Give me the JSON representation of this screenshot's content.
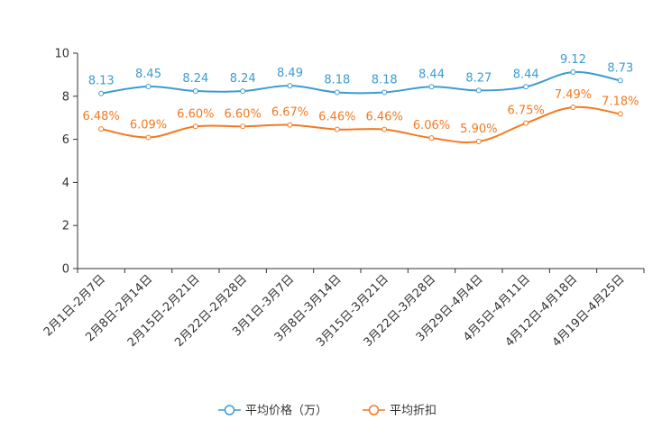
{
  "chart_data": {
    "type": "line",
    "categories": [
      "2月1日-2月7日",
      "2月8日-2月14日",
      "2月15日-2月21日",
      "2月22日-2月28日",
      "3月1日-3月7日",
      "3月8日-3月14日",
      "3月15日-3月21日",
      "3月22日-3月28日",
      "3月29日-4月4日",
      "4月5日-4月11日",
      "4月12日-4月18日",
      "4月19日-4月25日"
    ],
    "ylim": [
      0,
      10
    ],
    "yticks": [
      0,
      2,
      4,
      6,
      8,
      10
    ],
    "series": [
      {
        "name": "平均价格（万）",
        "color": "#3c9ccf",
        "values": [
          8.13,
          8.45,
          8.24,
          8.24,
          8.49,
          8.18,
          8.18,
          8.44,
          8.27,
          8.44,
          9.12,
          8.73
        ],
        "labels": [
          "8.13",
          "8.45",
          "8.24",
          "8.24",
          "8.49",
          "8.18",
          "8.18",
          "8.44",
          "8.27",
          "8.44",
          "9.12",
          "8.73"
        ]
      },
      {
        "name": "平均折扣",
        "color": "#f47920",
        "values": [
          6.48,
          6.09,
          6.6,
          6.6,
          6.67,
          6.46,
          6.46,
          6.06,
          5.9,
          6.75,
          7.49,
          7.18
        ],
        "labels": [
          "6.48%",
          "6.09%",
          "6.60%",
          "6.60%",
          "6.67%",
          "6.46%",
          "6.46%",
          "6.06%",
          "5.90%",
          "6.75%",
          "7.49%",
          "7.18%"
        ]
      }
    ],
    "legend_position": "bottom-center"
  }
}
